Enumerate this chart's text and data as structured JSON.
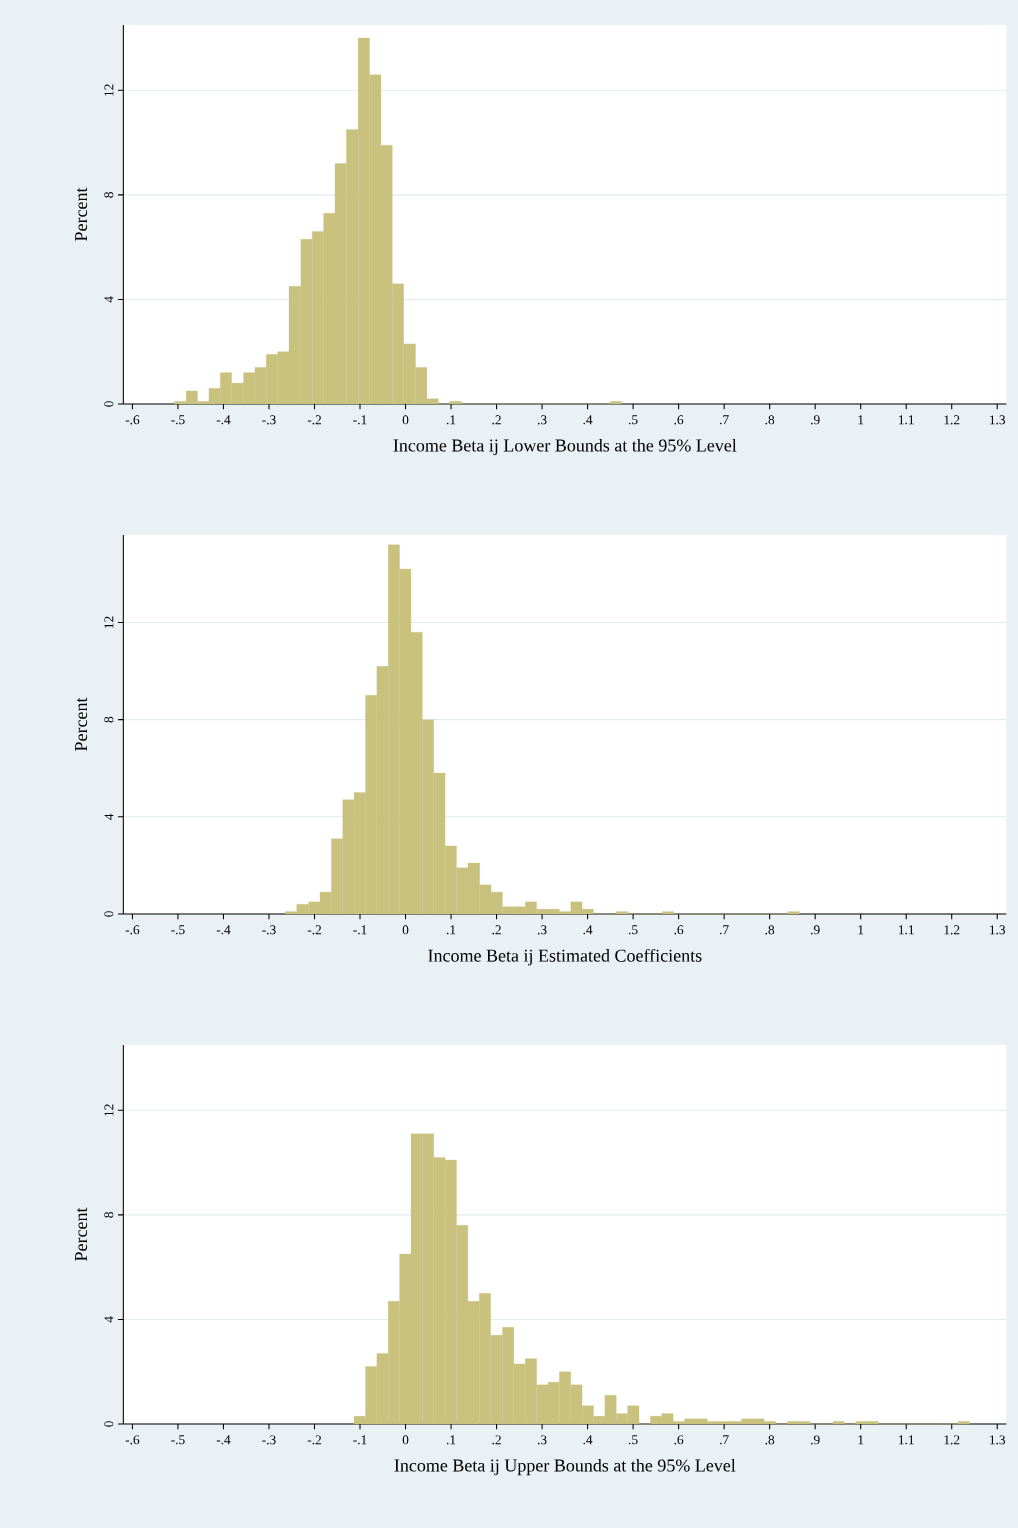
{
  "chart_data": [
    {
      "type": "histogram",
      "xlabel": "Income Beta ij Lower Bounds at the 95% Level",
      "ylabel": "Percent",
      "color": "#c9c27f",
      "grid": "y",
      "bins": [
        -0.508,
        -0.482,
        -0.457,
        -0.432,
        -0.407,
        -0.382,
        -0.356,
        -0.331,
        -0.306,
        -0.281,
        -0.256,
        -0.23,
        -0.205,
        -0.18,
        -0.155,
        -0.13,
        -0.104,
        -0.079,
        -0.054,
        -0.029,
        -0.004,
        0.022,
        0.047,
        0.072,
        0.097,
        0.123,
        0.148,
        0.173,
        0.198,
        0.223,
        0.249,
        0.274,
        0.299,
        0.324,
        0.349,
        0.375,
        0.4,
        0.425,
        0.45,
        0.475
      ],
      "values": [
        0.1,
        0.5,
        0.1,
        0.6,
        1.2,
        0.8,
        1.2,
        1.4,
        1.9,
        2.0,
        4.5,
        6.3,
        6.6,
        7.3,
        9.2,
        10.5,
        14.0,
        12.6,
        9.9,
        4.6,
        2.3,
        1.4,
        0.2,
        0,
        0.1,
        0,
        0,
        0,
        0,
        0,
        0,
        0,
        0,
        0,
        0,
        0,
        0,
        0,
        0.1
      ],
      "xlim": [
        -0.62,
        1.32
      ],
      "ylim": [
        0,
        14.5
      ],
      "xticks": [
        {
          "value": -0.6,
          "label": "-.6"
        },
        {
          "value": -0.5,
          "label": "-.5"
        },
        {
          "value": -0.4,
          "label": "-.4"
        },
        {
          "value": -0.3,
          "label": "-.3"
        },
        {
          "value": -0.2,
          "label": "-.2"
        },
        {
          "value": -0.1,
          "label": "-.1"
        },
        0,
        {
          "value": 0.1,
          "label": ".1"
        },
        {
          "value": 0.2,
          "label": ".2"
        },
        {
          "value": 0.3,
          "label": ".3"
        },
        {
          "value": 0.4,
          "label": ".4"
        },
        {
          "value": 0.5,
          "label": ".5"
        },
        {
          "value": 0.6,
          "label": ".6"
        },
        {
          "value": 0.7,
          "label": ".7"
        },
        {
          "value": 0.8,
          "label": ".8"
        },
        {
          "value": 0.9,
          "label": ".9"
        },
        1,
        1.1,
        1.2,
        1.3
      ],
      "yticks": [
        0,
        4,
        8,
        12
      ]
    },
    {
      "type": "histogram",
      "xlabel": "Income Beta ij Estimated Coefficients",
      "ylabel": "Percent",
      "color": "#c9c27f",
      "grid": "y",
      "bins": [
        -0.264,
        -0.239,
        -0.213,
        -0.188,
        -0.163,
        -0.138,
        -0.113,
        -0.088,
        -0.063,
        -0.038,
        -0.013,
        0.012,
        0.037,
        0.062,
        0.087,
        0.112,
        0.137,
        0.163,
        0.188,
        0.213,
        0.238,
        0.263,
        0.288,
        0.313,
        0.338,
        0.363,
        0.388,
        0.413,
        0.438,
        0.463,
        0.489,
        0.514,
        0.539,
        0.564,
        0.589,
        0.614,
        0.639,
        0.664,
        0.689,
        0.714,
        0.739,
        0.764,
        0.789,
        0.814,
        0.84,
        0.865
      ],
      "values": [
        0.1,
        0.4,
        0.5,
        0.9,
        3.1,
        4.7,
        5.0,
        9.0,
        10.2,
        15.2,
        14.2,
        11.6,
        8.0,
        5.8,
        2.8,
        1.9,
        2.1,
        1.2,
        0.9,
        0.3,
        0.3,
        0.5,
        0.2,
        0.2,
        0.1,
        0.5,
        0.2,
        0,
        0,
        0.1,
        0,
        0,
        0,
        0.1,
        0,
        0,
        0,
        0,
        0,
        0,
        0,
        0,
        0,
        0,
        0.1
      ],
      "xlim": [
        -0.62,
        1.32
      ],
      "ylim": [
        0,
        15.6
      ],
      "xticks": [
        {
          "value": -0.6,
          "label": "-.6"
        },
        {
          "value": -0.5,
          "label": "-.5"
        },
        {
          "value": -0.4,
          "label": "-.4"
        },
        {
          "value": -0.3,
          "label": "-.3"
        },
        {
          "value": -0.2,
          "label": "-.2"
        },
        {
          "value": -0.1,
          "label": "-.1"
        },
        0,
        {
          "value": 0.1,
          "label": ".1"
        },
        {
          "value": 0.2,
          "label": ".2"
        },
        {
          "value": 0.3,
          "label": ".3"
        },
        {
          "value": 0.4,
          "label": ".4"
        },
        {
          "value": 0.5,
          "label": ".5"
        },
        {
          "value": 0.6,
          "label": ".6"
        },
        {
          "value": 0.7,
          "label": ".7"
        },
        {
          "value": 0.8,
          "label": ".8"
        },
        {
          "value": 0.9,
          "label": ".9"
        },
        1,
        1.1,
        1.2,
        1.3
      ],
      "yticks": [
        0,
        4,
        8,
        12
      ]
    },
    {
      "type": "histogram",
      "xlabel": "Income Beta ij Upper Bounds at the 95% Level",
      "ylabel": "Percent",
      "color": "#c9c27f",
      "grid": "y",
      "bins": [
        -0.113,
        -0.088,
        -0.063,
        -0.038,
        -0.013,
        0.012,
        0.037,
        0.062,
        0.087,
        0.112,
        0.137,
        0.162,
        0.187,
        0.213,
        0.238,
        0.263,
        0.288,
        0.313,
        0.338,
        0.363,
        0.388,
        0.413,
        0.438,
        0.463,
        0.488,
        0.513,
        0.538,
        0.563,
        0.588,
        0.613,
        0.638,
        0.663,
        0.688,
        0.713,
        0.738,
        0.763,
        0.788,
        0.813,
        0.839,
        0.864,
        0.889,
        0.914,
        0.939,
        0.964,
        0.989,
        1.014,
        1.039,
        1.064,
        1.089,
        1.114,
        1.139,
        1.164,
        1.189,
        1.214,
        1.239
      ],
      "values": [
        0.3,
        2.2,
        2.7,
        4.7,
        6.5,
        11.1,
        11.1,
        10.2,
        10.1,
        7.6,
        4.7,
        5.0,
        3.4,
        3.7,
        2.3,
        2.5,
        1.5,
        1.6,
        2.0,
        1.5,
        0.7,
        0.3,
        1.1,
        0.4,
        0.7,
        0,
        0.3,
        0.4,
        0.1,
        0.2,
        0.2,
        0.1,
        0.1,
        0.1,
        0.2,
        0.2,
        0.1,
        0,
        0.1,
        0.1,
        0,
        0,
        0.1,
        0,
        0.1,
        0.1,
        0,
        0,
        0,
        0,
        0,
        0,
        0,
        0.1
      ],
      "xlim": [
        -0.62,
        1.32
      ],
      "ylim": [
        0,
        14.5
      ],
      "xticks": [
        {
          "value": -0.6,
          "label": "-.6"
        },
        {
          "value": -0.5,
          "label": "-.5"
        },
        {
          "value": -0.4,
          "label": "-.4"
        },
        {
          "value": -0.3,
          "label": "-.3"
        },
        {
          "value": -0.2,
          "label": "-.2"
        },
        {
          "value": -0.1,
          "label": "-.1"
        },
        0,
        {
          "value": 0.1,
          "label": ".1"
        },
        {
          "value": 0.2,
          "label": ".2"
        },
        {
          "value": 0.3,
          "label": ".3"
        },
        {
          "value": 0.4,
          "label": ".4"
        },
        {
          "value": 0.5,
          "label": ".5"
        },
        {
          "value": 0.6,
          "label": ".6"
        },
        {
          "value": 0.7,
          "label": ".7"
        },
        {
          "value": 0.8,
          "label": ".8"
        },
        {
          "value": 0.9,
          "label": ".9"
        },
        1,
        1.1,
        1.2,
        1.3
      ],
      "yticks": [
        0,
        4,
        8,
        12
      ]
    }
  ]
}
